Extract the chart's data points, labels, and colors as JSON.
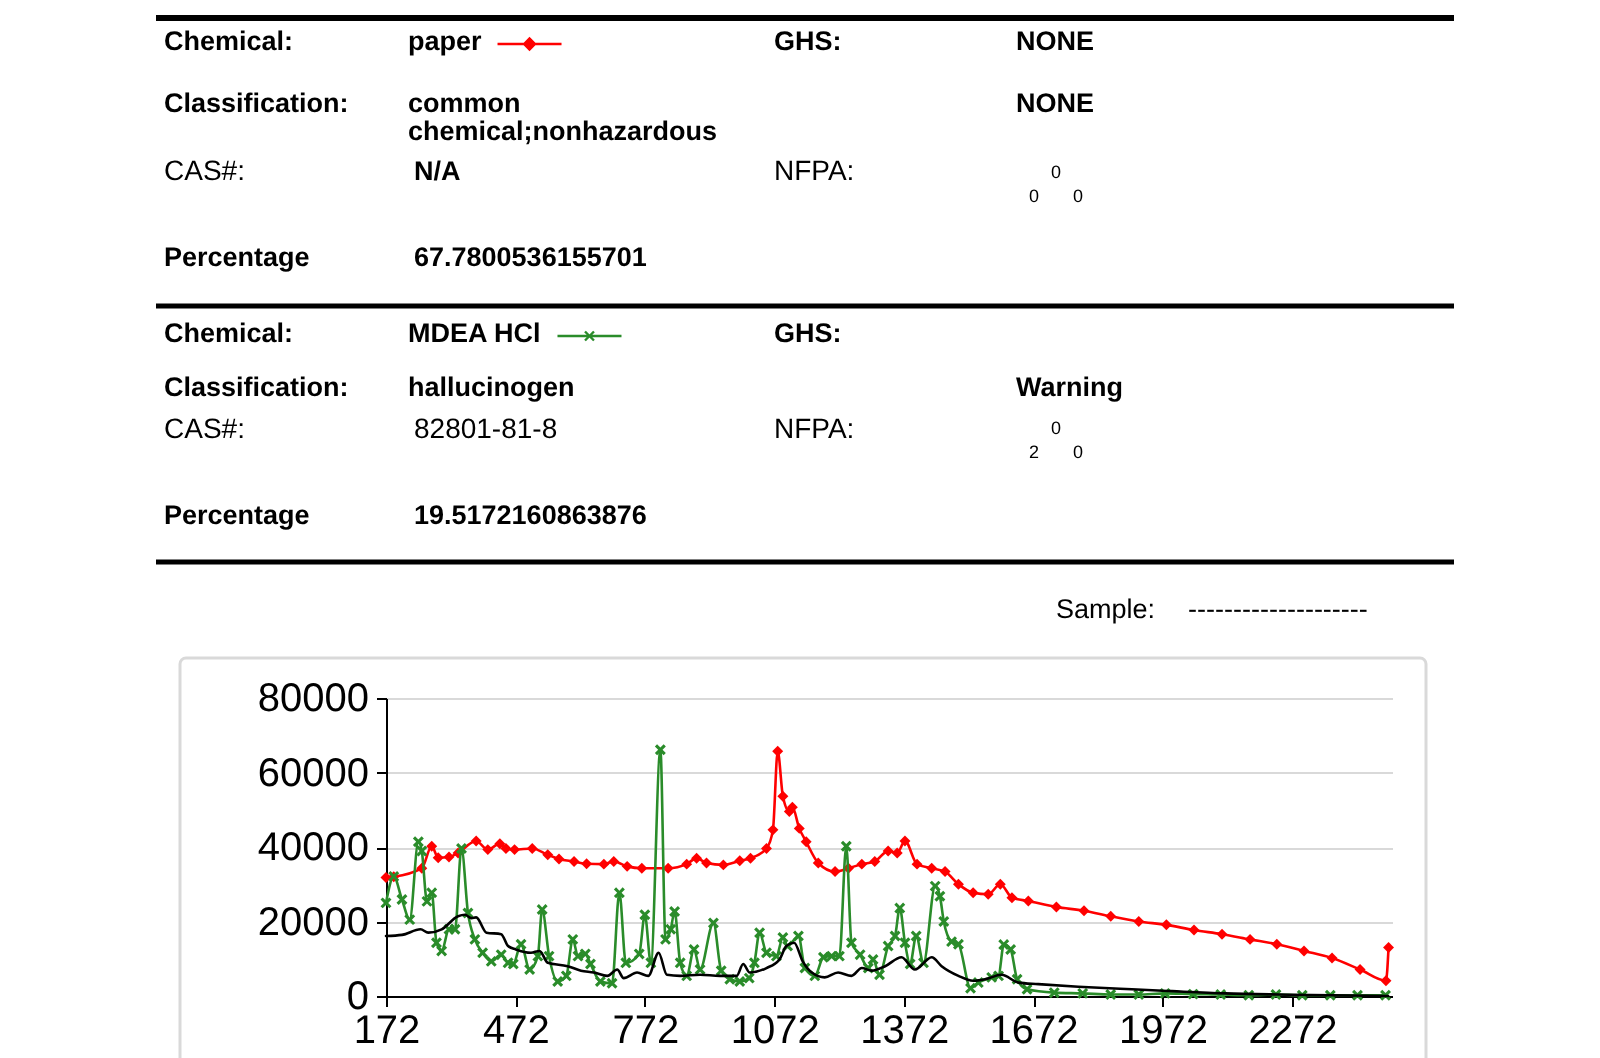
{
  "chart_data": [
    {
      "type": "other",
      "annotations": [
        "Chemical:",
        "GHS:",
        "NONE",
        "Classification:",
        "common chemical;nonhazardous",
        "NONE",
        "CAS#:",
        "N/A",
        "NFPA:",
        "0",
        "0",
        "0",
        "Percentage",
        "67.7800536155701",
        "Chemical:",
        "GHS:",
        "Classification:",
        "hallucinogen",
        "Warning",
        "CAS#:",
        "82801-81-8",
        "NFPA:",
        "0",
        "2",
        "0",
        "Percentage",
        "19.5172160863876",
        "Sample:",
        "--------------------"
      ]
    },
    {
      "type": "line",
      "xlim": [
        172,
        2504
      ],
      "xticks": [
        172,
        472,
        772,
        1072,
        1372,
        1672,
        1972,
        2272
      ],
      "ylim": [
        0,
        80000
      ],
      "yticks": [
        0,
        20000,
        40000,
        60000,
        80000
      ],
      "grid": "y",
      "legend": "top",
      "series": [
        {
          "name": "paper",
          "color": "#ff0000",
          "marker": "diamond",
          "x": [
            172,
            190,
            255,
            278,
            293,
            318,
            339,
            381,
            408,
            436,
            450,
            470,
            511,
            547,
            573,
            608,
            637,
            677,
            700,
            731,
            765,
            826,
            869,
            892,
            915,
            954,
            992,
            1017,
            1054,
            1069,
            1080,
            1092,
            1107,
            1114,
            1130,
            1146,
            1174,
            1213,
            1244,
            1275,
            1305,
            1336,
            1357,
            1375,
            1403,
            1437,
            1468,
            1499,
            1533,
            1568,
            1596,
            1623,
            1661,
            1726,
            1790,
            1852,
            1917,
            1981,
            2045,
            2110,
            2175,
            2237,
            2300,
            2365,
            2430,
            2490,
            2496
          ],
          "values": [
            31800,
            32000,
            34300,
            40200,
            37100,
            37300,
            38400,
            41600,
            39300,
            40900,
            39600,
            39300,
            39600,
            37900,
            36800,
            36100,
            35500,
            35400,
            36100,
            34800,
            34300,
            34300,
            35400,
            37000,
            35700,
            35200,
            36300,
            37000,
            39600,
            44600,
            65700,
            53600,
            49500,
            50700,
            45000,
            41400,
            35700,
            33400,
            34300,
            35400,
            36100,
            38900,
            38400,
            41600,
            35400,
            34300,
            33400,
            30000,
            27700,
            27300,
            30000,
            26400,
            25500,
            23900,
            22900,
            21400,
            20000,
            19100,
            17700,
            16600,
            15200,
            13900,
            12100,
            10200,
            7100,
            4100,
            13000
          ]
        },
        {
          "name": "MDEA HCl",
          "color": "#2a8c2a",
          "marker": "cross",
          "x": [
            172,
            190,
            209,
            227,
            247,
            255,
            267,
            278,
            289,
            301,
            318,
            332,
            347,
            362,
            378,
            396,
            416,
            439,
            455,
            467,
            485,
            505,
            524,
            534,
            550,
            570,
            590,
            605,
            617,
            634,
            646,
            669,
            696,
            713,
            728,
            759,
            772,
            786,
            808,
            820,
            832,
            841,
            854,
            869,
            886,
            900,
            931,
            949,
            969,
            992,
            1014,
            1026,
            1038,
            1054,
            1077,
            1092,
            1103,
            1128,
            1143,
            1166,
            1186,
            1205,
            1223,
            1239,
            1251,
            1271,
            1290,
            1301,
            1316,
            1336,
            1352,
            1363,
            1375,
            1387,
            1401,
            1418,
            1445,
            1456,
            1465,
            1483,
            1499,
            1527,
            1545,
            1576,
            1592,
            1604,
            1620,
            1635,
            1658,
            1721,
            1787,
            1852,
            1917,
            1978,
            2043,
            2107,
            2172,
            2235,
            2296,
            2361,
            2424,
            2489
          ],
          "values": [
            25000,
            32100,
            25900,
            20500,
            41400,
            38900,
            25400,
            27700,
            14300,
            12100,
            17900,
            17900,
            39600,
            22300,
            15200,
            11600,
            9300,
            11100,
            8900,
            8600,
            13900,
            7100,
            10700,
            23200,
            10700,
            3900,
            5400,
            15200,
            10700,
            11300,
            8600,
            3900,
            3400,
            27700,
            8900,
            11300,
            21800,
            8900,
            66100,
            15200,
            17900,
            22700,
            8900,
            5400,
            12500,
            7100,
            19600,
            6800,
            4500,
            3900,
            4800,
            8900,
            17000,
            11600,
            10700,
            15700,
            13400,
            16100,
            7500,
            5400,
            10400,
            10700,
            10700,
            40200,
            14300,
            11100,
            7500,
            9800,
            5700,
            13400,
            16100,
            23600,
            14300,
            8600,
            16100,
            8900,
            29500,
            26800,
            20000,
            14600,
            13900,
            2100,
            3600,
            5000,
            5400,
            13800,
            12500,
            4500,
            1800,
            900,
            700,
            400,
            400,
            700,
            500,
            400,
            200,
            400,
            200,
            200,
            200,
            200
          ]
        },
        {
          "color": "#000000",
          "marker": "none",
          "x": [
            172,
            209,
            252,
            270,
            301,
            339,
            355,
            370,
            381,
            405,
            439,
            455,
            473,
            508,
            528,
            547,
            593,
            624,
            654,
            685,
            708,
            723,
            754,
            780,
            804,
            823,
            854,
            900,
            946,
            985,
            1000,
            1015,
            1054,
            1084,
            1100,
            1118,
            1138,
            1159,
            1189,
            1220,
            1251,
            1275,
            1298,
            1329,
            1367,
            1398,
            1437,
            1460,
            1499,
            1533,
            1561,
            1599,
            1638,
            1684,
            1777,
            1901,
            1994,
            2118,
            2242,
            2365,
            2495
          ],
          "values": [
            16100,
            16400,
            17900,
            17000,
            17900,
            21400,
            21800,
            20900,
            21100,
            17000,
            16600,
            13400,
            12500,
            11600,
            12100,
            8900,
            8000,
            6800,
            6300,
            5400,
            7100,
            4800,
            6300,
            5400,
            11600,
            5700,
            5400,
            5700,
            5400,
            5400,
            8600,
            6300,
            7500,
            9800,
            13400,
            14300,
            9300,
            6300,
            5000,
            6300,
            5400,
            7500,
            6800,
            8000,
            10400,
            7100,
            10400,
            8000,
            5400,
            4100,
            4500,
            5700,
            3600,
            3200,
            2500,
            1800,
            1300,
            700,
            400,
            200,
            0
          ]
        }
      ]
    }
  ]
}
